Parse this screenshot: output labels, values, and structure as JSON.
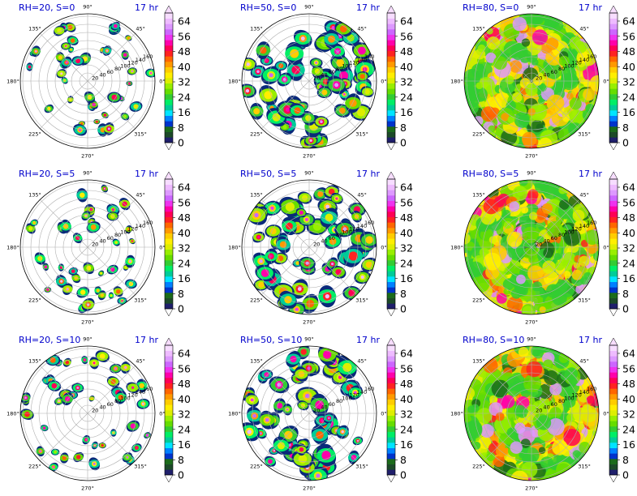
{
  "figure": {
    "colorbar_colors": [
      "#1f1f6b",
      "#1c4a28",
      "#1b6b1b",
      "#0033cc",
      "#0080ff",
      "#00e5ff",
      "#00cc99",
      "#00ee66",
      "#33cc33",
      "#66dd00",
      "#99ee00",
      "#ddee00",
      "#ffee00",
      "#ffcc00",
      "#ff9900",
      "#ff6600",
      "#ff2222",
      "#ff0055",
      "#ff00aa",
      "#ee33ee",
      "#cc66ff",
      "#dd99ff",
      "#eebbff",
      "#f7ddff"
    ]
  },
  "chart_data": [
    {
      "type": "heatmap",
      "projection": "polar",
      "title": "RH=20, S=0",
      "time_label": "17 hr",
      "angle_ticks": [
        "0°",
        "45°",
        "90°",
        "135°",
        "180°",
        "225°",
        "270°",
        "315°"
      ],
      "radial_ticks": [
        "20",
        "40",
        "60",
        "80",
        "100",
        "120",
        "140",
        "160"
      ],
      "colorbar_ticks": [
        "0",
        "8",
        "16",
        "24",
        "32",
        "40",
        "48",
        "56",
        "64"
      ],
      "colorbar_range": [
        0,
        64
      ],
      "coverage": 0.18
    },
    {
      "type": "heatmap",
      "projection": "polar",
      "title": "RH=50, S=0",
      "time_label": "17 hr",
      "angle_ticks": [
        "0°",
        "45°",
        "90°",
        "135°",
        "180°",
        "225°",
        "270°",
        "315°"
      ],
      "radial_ticks": [
        "20",
        "40",
        "60",
        "80",
        "100",
        "120",
        "140",
        "160"
      ],
      "colorbar_ticks": [
        "0",
        "8",
        "16",
        "24",
        "32",
        "40",
        "48",
        "56",
        "64"
      ],
      "colorbar_range": [
        0,
        64
      ],
      "coverage": 0.55
    },
    {
      "type": "heatmap",
      "projection": "polar",
      "title": "RH=80, S=0",
      "time_label": "17 hr",
      "angle_ticks": [
        "0°",
        "45°",
        "90°",
        "135°",
        "180°",
        "225°",
        "270°",
        "315°"
      ],
      "radial_ticks": [
        "20",
        "40",
        "60",
        "80",
        "100",
        "120",
        "140",
        "160"
      ],
      "colorbar_ticks": [
        "0",
        "8",
        "16",
        "24",
        "32",
        "40",
        "48",
        "56",
        "64"
      ],
      "colorbar_range": [
        0,
        64
      ],
      "coverage": 1.0
    },
    {
      "type": "heatmap",
      "projection": "polar",
      "title": "RH=20, S=5",
      "time_label": "17 hr",
      "angle_ticks": [
        "0°",
        "45°",
        "90°",
        "135°",
        "180°",
        "225°",
        "270°",
        "315°"
      ],
      "radial_ticks": [
        "20",
        "40",
        "60",
        "80",
        "100",
        "120",
        "140",
        "160"
      ],
      "colorbar_ticks": [
        "0",
        "8",
        "16",
        "24",
        "32",
        "40",
        "48",
        "56",
        "64"
      ],
      "colorbar_range": [
        0,
        64
      ],
      "coverage": 0.18
    },
    {
      "type": "heatmap",
      "projection": "polar",
      "title": "RH=50, S=5",
      "time_label": "17 hr",
      "angle_ticks": [
        "0°",
        "45°",
        "90°",
        "135°",
        "180°",
        "225°",
        "270°",
        "315°"
      ],
      "radial_ticks": [
        "20",
        "40",
        "60",
        "80",
        "100",
        "120",
        "140",
        "160"
      ],
      "colorbar_ticks": [
        "0",
        "8",
        "16",
        "24",
        "32",
        "40",
        "48",
        "56",
        "64"
      ],
      "colorbar_range": [
        0,
        64
      ],
      "coverage": 0.55
    },
    {
      "type": "heatmap",
      "projection": "polar",
      "title": "RH=80, S=5",
      "time_label": "17 hr",
      "angle_ticks": [
        "0°",
        "45°",
        "90°",
        "135°",
        "180°",
        "225°",
        "270°",
        "315°"
      ],
      "radial_ticks": [
        "20",
        "40",
        "60",
        "80",
        "100",
        "120",
        "140",
        "160"
      ],
      "colorbar_ticks": [
        "0",
        "8",
        "16",
        "24",
        "32",
        "40",
        "48",
        "56",
        "64"
      ],
      "colorbar_range": [
        0,
        64
      ],
      "coverage": 1.0
    },
    {
      "type": "heatmap",
      "projection": "polar",
      "title": "RH=20, S=10",
      "time_label": "17 hr",
      "angle_ticks": [
        "0°",
        "45°",
        "90°",
        "135°",
        "180°",
        "225°",
        "270°",
        "315°"
      ],
      "radial_ticks": [
        "20",
        "40",
        "60",
        "80",
        "100",
        "120",
        "140",
        "160"
      ],
      "colorbar_ticks": [
        "0",
        "8",
        "16",
        "24",
        "32",
        "40",
        "48",
        "56",
        "64"
      ],
      "colorbar_range": [
        0,
        64
      ],
      "coverage": 0.18
    },
    {
      "type": "heatmap",
      "projection": "polar",
      "title": "RH=50, S=10",
      "time_label": "17 hr",
      "angle_ticks": [
        "0°",
        "45°",
        "90°",
        "135°",
        "180°",
        "225°",
        "270°",
        "315°"
      ],
      "radial_ticks": [
        "20",
        "40",
        "60",
        "80",
        "100",
        "120",
        "140",
        "160"
      ],
      "colorbar_ticks": [
        "0",
        "8",
        "16",
        "24",
        "32",
        "40",
        "48",
        "56",
        "64"
      ],
      "colorbar_range": [
        0,
        64
      ],
      "coverage": 0.55
    },
    {
      "type": "heatmap",
      "projection": "polar",
      "title": "RH=80, S=10",
      "time_label": "17 hr",
      "angle_ticks": [
        "0°",
        "45°",
        "90°",
        "135°",
        "180°",
        "225°",
        "270°",
        "315°"
      ],
      "radial_ticks": [
        "20",
        "40",
        "60",
        "80",
        "100",
        "120",
        "140",
        "160"
      ],
      "colorbar_ticks": [
        "0",
        "8",
        "16",
        "24",
        "32",
        "40",
        "48",
        "56",
        "64"
      ],
      "colorbar_range": [
        0,
        64
      ],
      "coverage": 1.0
    }
  ]
}
